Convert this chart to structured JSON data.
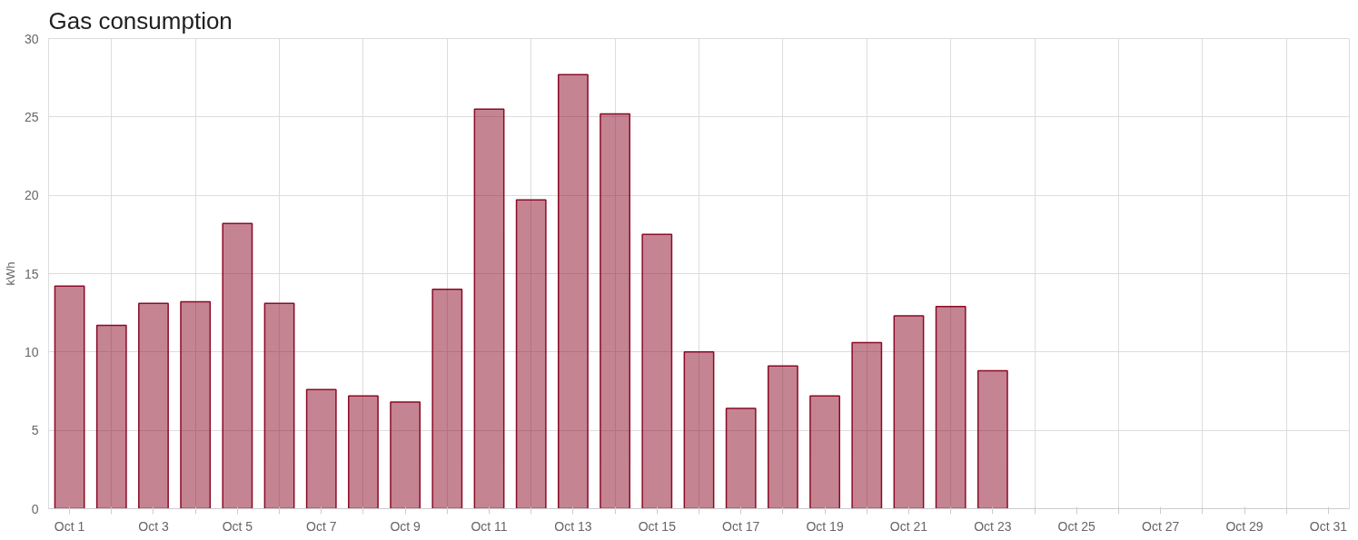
{
  "chart_data": {
    "type": "bar",
    "title": "Gas consumption",
    "ylabel": "kWh",
    "categories": [
      "Oct 1",
      null,
      "Oct 3",
      null,
      "Oct 5",
      null,
      "Oct 7",
      null,
      "Oct 9",
      null,
      "Oct 11",
      null,
      "Oct 13",
      null,
      "Oct 15",
      null,
      "Oct 17",
      null,
      "Oct 19",
      null,
      "Oct 21",
      null,
      "Oct 23",
      null,
      "Oct 25",
      null,
      "Oct 27",
      null,
      "Oct 29",
      null,
      "Oct 31"
    ],
    "values": [
      14.2,
      11.7,
      13.1,
      13.2,
      18.2,
      13.1,
      7.6,
      7.2,
      6.8,
      14.0,
      25.5,
      19.7,
      27.7,
      25.2,
      17.5,
      10.0,
      6.4,
      9.1,
      7.2,
      10.6,
      12.3,
      12.9,
      8.8,
      null,
      null,
      null,
      null,
      null,
      null,
      null,
      null
    ],
    "color": "#8b0a26",
    "ylim": [
      0,
      30
    ],
    "yticks": [
      0,
      5,
      10,
      15,
      20,
      25,
      30
    ],
    "grid": true
  }
}
